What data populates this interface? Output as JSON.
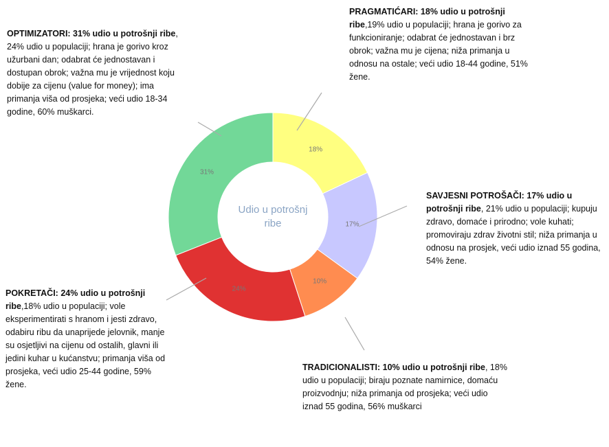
{
  "chart_data": {
    "type": "donut",
    "center_label": [
      "Udio u potrošnj",
      "ribe"
    ],
    "categories": [
      "PRAGMATIĆARI",
      "SAVJESNI POTROŠAČI",
      "TRADICIONALISTI",
      "POKRETAČI",
      "OPTIMIZATORI"
    ],
    "values": [
      18,
      17,
      10,
      24,
      31
    ],
    "value_labels": [
      "18%",
      "17%",
      "10%",
      "24%",
      "31%"
    ],
    "colors": [
      "#ffff80",
      "#c8c8ff",
      "#ff8c50",
      "#e03232",
      "#72d898"
    ],
    "annotations": [
      {
        "bold": "PRAGMATIĆARI: 18% udio u potrošnji ribe",
        "text": ",19% udio u populaciji; hrana je gorivo za funkcioniranje; odabrat će jednostavan i brz obrok; važna mu je cijena; niža primanja u odnosu na ostale; veći udio 18-44 godine, 51% žene."
      },
      {
        "bold": "SAVJESNI POTROŠAČI: 17% udio u potrošnji ribe",
        "text": ", 21% udio u populaciji; kupuju zdravo, domaće i prirodno; vole kuhati; promoviraju zdrav životni stil; niža primanja u odnosu  na prosjek, veći udio iznad 55 godina, 54% žene."
      },
      {
        "bold": "TRADICIONALISTI: 10% udio u potrošnji ribe",
        "text": ", 18% udio u populaciji; biraju poznate namirnice, domaću  proizvodnju; niža primanja od prosjeka; veći udio iznad 55 godina, 56% muškarci"
      },
      {
        "bold": "POKRETAČI: 24% udio u potrošnji ribe",
        "text": ",18% udio u populaciji; vole eksperimentirati s hranom i jesti zdravo, odabiru ribu da unaprijede jelovnik, manje su osjetljivi na cijenu od ostalih, glavni ili jedini kuhar u kućanstvu; primanja viša od prosjeka, veći udio 25-44 godine, 59% žene."
      },
      {
        "bold": "OPTIMIZATORI: 31% udio u potrošnji ribe",
        "text": ", 24% udio u populaciji; hrana je gorivo kroz užurbani dan; odabrat će jednostavan i dostupan obrok; važna mu je vrijednost koju dobije za cijenu (value for money); ima primanja viša od prosjeka; veći udio 18-34 godine, 60% muškarci."
      }
    ]
  }
}
